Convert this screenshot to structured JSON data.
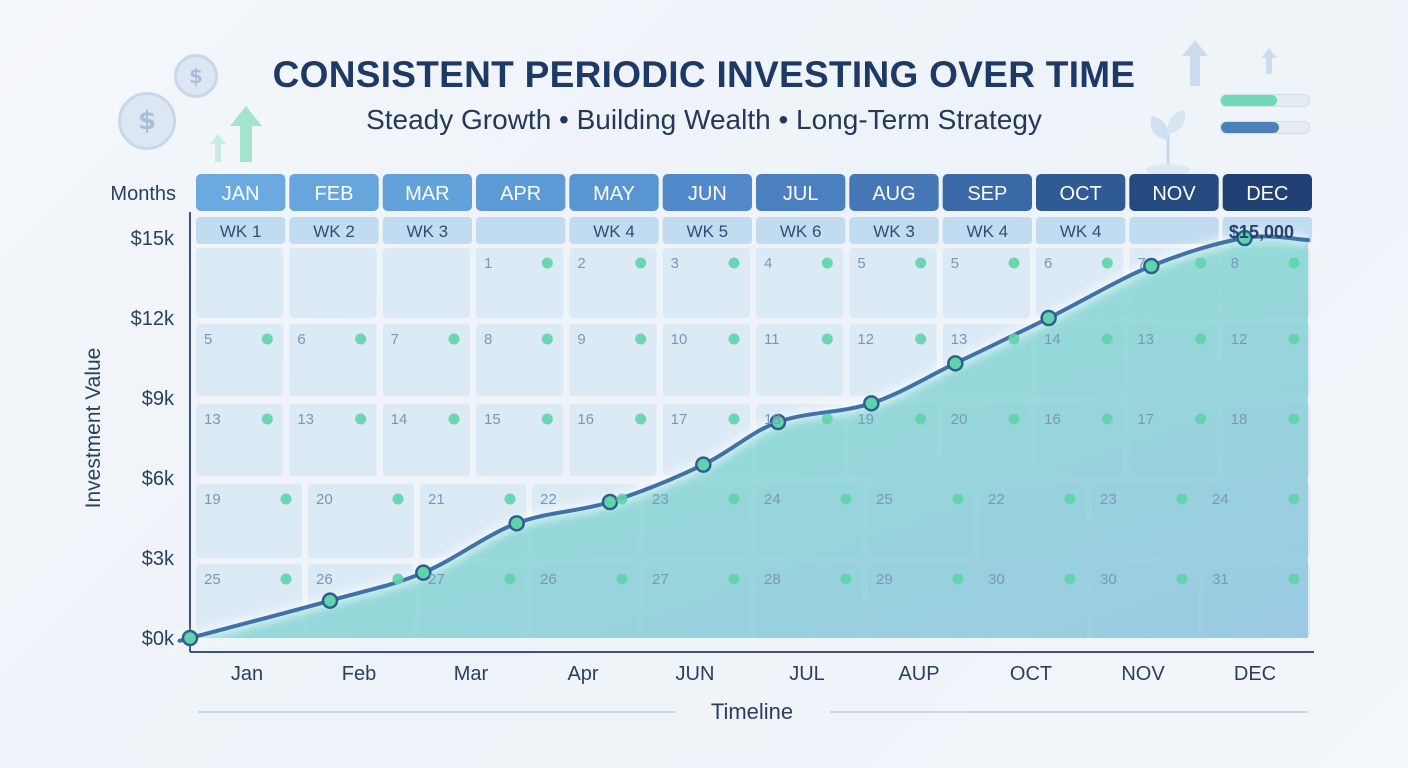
{
  "chart_data": {
    "type": "line",
    "title": "CONSISTENT PERIODIC INVESTING OVER TIME",
    "subtitle": "Steady Growth • Building Wealth • Long-Term Strategy",
    "ylabel": "Investment Value",
    "xlabel": "Timeline",
    "ylim": [
      0,
      15000
    ],
    "y_ticks": [
      "$0k",
      "$3k",
      "$6k",
      "$9k",
      "$12k",
      "$15k"
    ],
    "x_tick_labels": [
      "Jan",
      "Feb",
      "Mar",
      "Apr",
      "JUN",
      "JUL",
      "AUP",
      "OCT",
      "NOV",
      "DEC"
    ],
    "months_label": "Months",
    "months": [
      "JAN",
      "FEB",
      "MAR",
      "APR",
      "MAY",
      "JUN",
      "JUL",
      "AUG",
      "SEP",
      "OCT",
      "NOV",
      "DEC"
    ],
    "week_labels": [
      "WK 1",
      "WK 2",
      "WK 3",
      "",
      "WK 4",
      "WK 5",
      "WK 6",
      "WK 3",
      "WK 4",
      "WK 4",
      "",
      ""
    ],
    "final_value_label": "$15,000",
    "calendar_days": [
      [
        "",
        "",
        "",
        "1",
        "2",
        "3",
        "4",
        "5",
        "5",
        "6",
        "7",
        "8"
      ],
      [
        "5",
        "6",
        "7",
        "8",
        "9",
        "10",
        "11",
        "12",
        "13",
        "14",
        "13",
        "12"
      ],
      [
        "13",
        "13",
        "14",
        "15",
        "16",
        "17",
        "18",
        "19",
        "20",
        "16",
        "17",
        "18"
      ],
      [
        "19",
        "20",
        "21",
        "22",
        "23",
        "24",
        "25",
        "22",
        "23",
        "24"
      ],
      [
        "25",
        "26",
        "27",
        "26",
        "27",
        "28",
        "29",
        "30",
        "30",
        "31"
      ]
    ],
    "series": [
      {
        "x": [
          0,
          1.5,
          2.5,
          3.5,
          4.5,
          5.5,
          6.3,
          7.3,
          8.2,
          9.2,
          10.3,
          11.3
        ],
        "values": [
          0,
          1400,
          2450,
          4300,
          5100,
          6500,
          8100,
          8800,
          10300,
          12000,
          13950,
          15000
        ]
      }
    ],
    "colors": {
      "line": "#3f72a8",
      "area_top": "#7fe8c8",
      "area_bottom": "#8fc3df",
      "marker": "#5fd3ab",
      "cell": "#d7e7f5"
    }
  }
}
